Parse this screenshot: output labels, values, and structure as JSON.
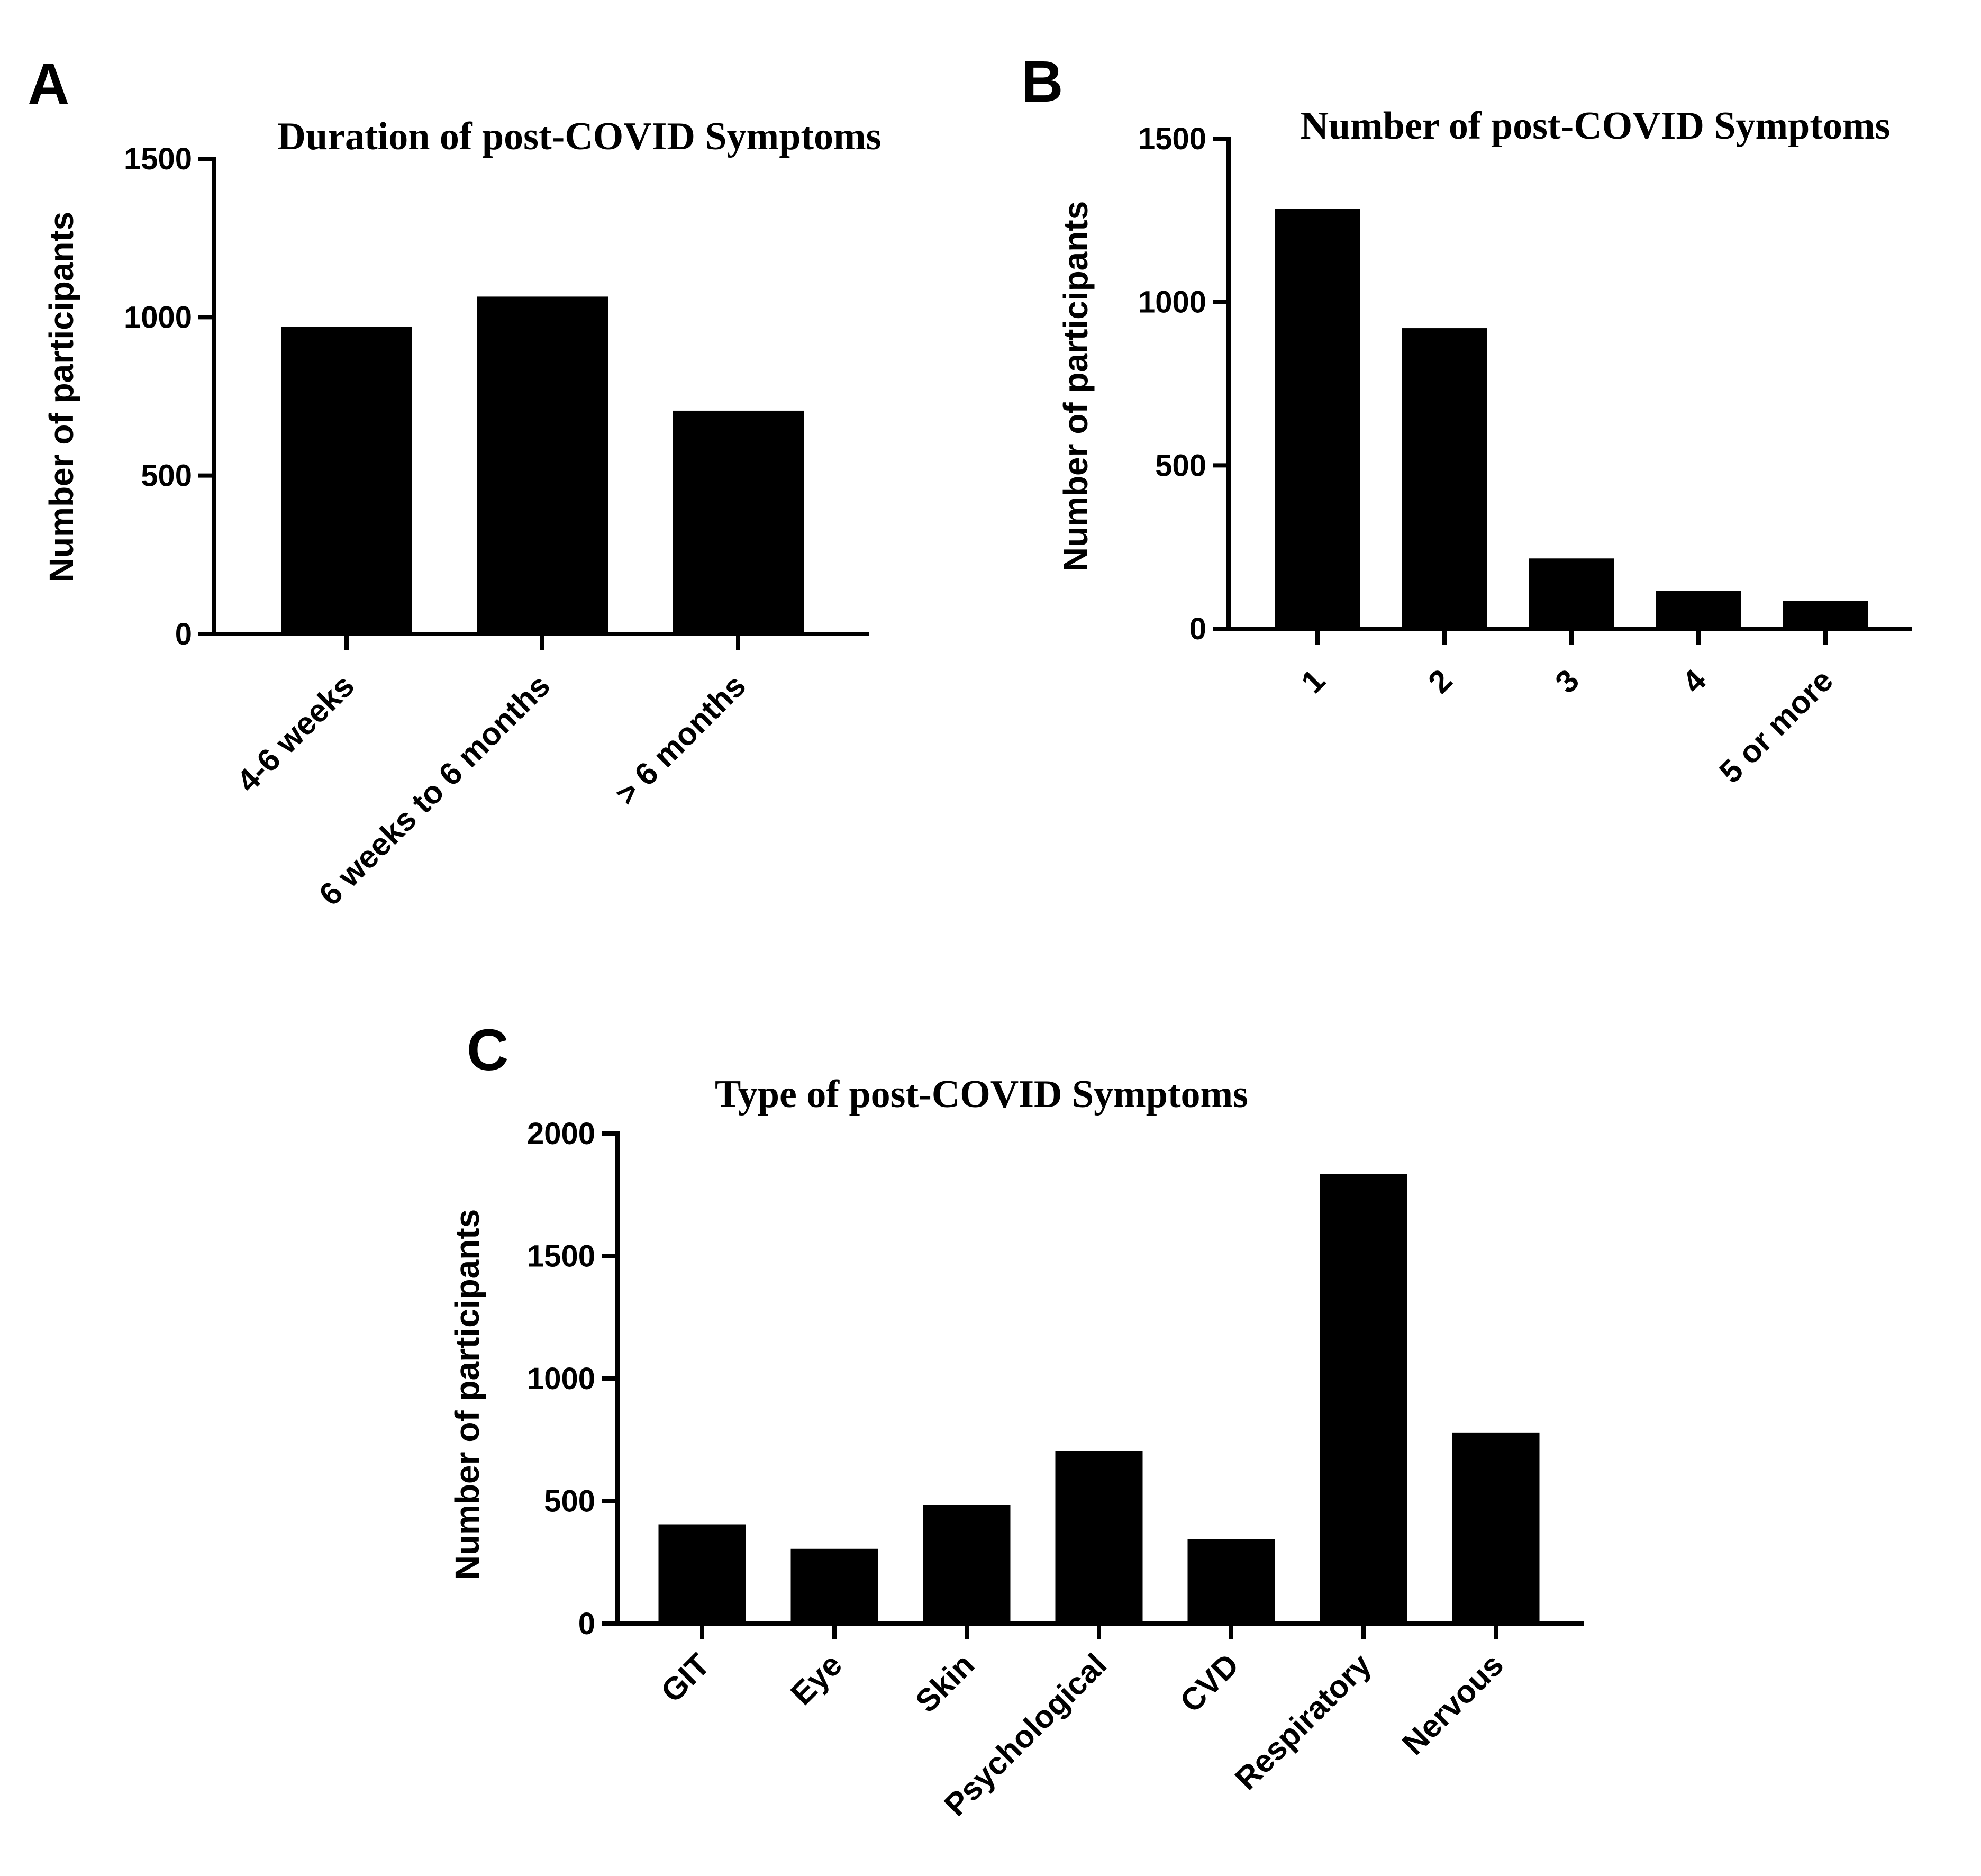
{
  "chart_data": [
    {
      "panel": "A",
      "type": "bar",
      "title": "Duration of  post-COVID Symptoms",
      "xlabel": "",
      "ylabel": "Number of participants",
      "categories": [
        "4-6 weeks",
        "6 weeks to 6 months",
        "> 6 months"
      ],
      "values": [
        970,
        1065,
        705
      ],
      "ylim": [
        0,
        1500
      ],
      "yticks": [
        0,
        500,
        1000,
        1500
      ]
    },
    {
      "panel": "B",
      "type": "bar",
      "title": "Number of  post-COVID Symptoms",
      "xlabel": "",
      "ylabel": "Number of participants",
      "categories": [
        "1",
        "2",
        "3",
        "4",
        "5 or more"
      ],
      "values": [
        1285,
        920,
        215,
        115,
        85
      ],
      "ylim": [
        0,
        1500
      ],
      "yticks": [
        0,
        500,
        1000,
        1500
      ]
    },
    {
      "panel": "C",
      "type": "bar",
      "title": "Type of post-COVID Symptoms",
      "xlabel": "",
      "ylabel": "Number of participants",
      "categories": [
        "GIT",
        "Eye",
        "Skin",
        "Psychological",
        "CVD",
        "Respiratory",
        "Nervous"
      ],
      "values": [
        405,
        305,
        485,
        705,
        345,
        1835,
        780
      ],
      "ylim": [
        0,
        2000
      ],
      "yticks": [
        0,
        500,
        1000,
        1500,
        2000
      ]
    }
  ]
}
